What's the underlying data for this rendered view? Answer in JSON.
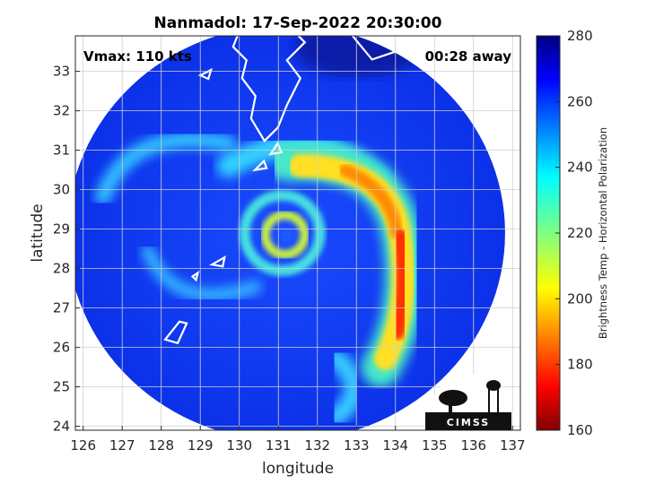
{
  "chart_data": {
    "type": "heatmap",
    "title": "Nanmadol: 17-Sep-2022 20:30:00",
    "xlabel": "longitude",
    "ylabel": "latitude",
    "xlim": [
      125.8,
      137.2
    ],
    "ylim": [
      23.9,
      33.9
    ],
    "xticks": [
      126,
      127,
      128,
      129,
      130,
      131,
      132,
      133,
      134,
      135,
      136,
      137
    ],
    "yticks": [
      24,
      25,
      26,
      27,
      28,
      29,
      30,
      31,
      32,
      33
    ],
    "grid": true,
    "annotations": {
      "vmax": "Vmax: 110 kts",
      "away": "00:28 away"
    },
    "storm_center": {
      "lon": 131.1,
      "lat": 28.9
    },
    "swath_center": {
      "lon": 131.2,
      "lat": 28.9
    },
    "colorbar": {
      "label": "Brightness Temp - Horizontal Polarization",
      "range": [
        160,
        280
      ],
      "ticks": [
        160,
        180,
        200,
        220,
        240,
        260,
        280
      ],
      "colormap": "jet"
    },
    "logo": "CIMSS"
  }
}
